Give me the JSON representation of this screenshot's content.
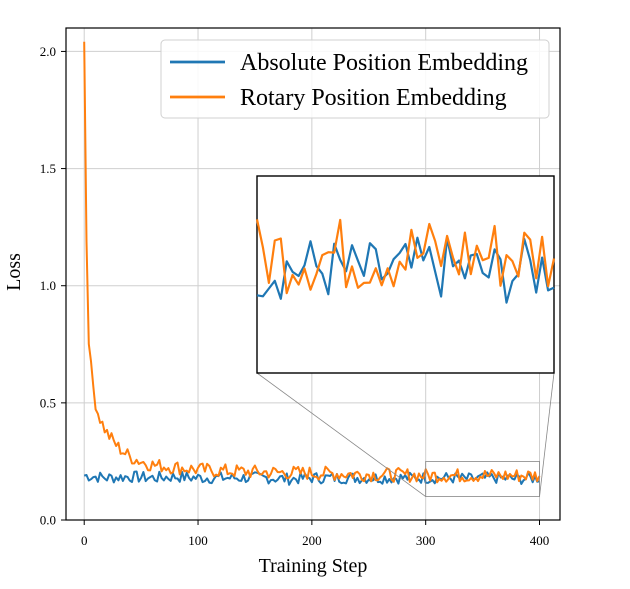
{
  "chart_data": {
    "type": "line",
    "title": "",
    "xlabel": "Training Step",
    "ylabel": "Loss",
    "xlim": [
      -16,
      418
    ],
    "ylim": [
      0.0,
      2.1
    ],
    "xticks": [
      0,
      100,
      200,
      300,
      400
    ],
    "xtick_labels": [
      "0",
      "100",
      "200",
      "300",
      "400"
    ],
    "yticks": [
      0.0,
      0.5,
      1.0,
      1.5,
      2.0
    ],
    "ytick_labels": [
      "0.0",
      "0.5",
      "1.0",
      "1.5",
      "2.0"
    ],
    "grid": true,
    "legend_position": "top-right",
    "series": [
      {
        "name": "Absolute Position Embedding",
        "color": "#1f77b4",
        "x": [
          0,
          20,
          40,
          60,
          80,
          100,
          120,
          140,
          160,
          180,
          200,
          220,
          240,
          260,
          280,
          300,
          320,
          340,
          360,
          380,
          400
        ],
        "values": [
          0.19,
          0.18,
          0.185,
          0.18,
          0.185,
          0.18,
          0.18,
          0.18,
          0.18,
          0.175,
          0.18,
          0.18,
          0.18,
          0.18,
          0.18,
          0.18,
          0.18,
          0.175,
          0.18,
          0.175,
          0.18
        ],
        "noise_band": 0.025
      },
      {
        "name": "Rotary Position Embedding",
        "color": "#ff7f0e",
        "x": [
          0,
          2,
          4,
          6,
          8,
          10,
          12,
          15,
          20,
          25,
          30,
          40,
          50,
          60,
          80,
          100,
          120,
          150,
          200,
          250,
          300,
          350,
          400
        ],
        "values": [
          2.04,
          1.2,
          0.78,
          0.65,
          0.57,
          0.5,
          0.46,
          0.42,
          0.37,
          0.34,
          0.31,
          0.27,
          0.25,
          0.235,
          0.225,
          0.215,
          0.21,
          0.205,
          0.2,
          0.195,
          0.19,
          0.19,
          0.19
        ],
        "noise_band": 0.03
      }
    ],
    "inset": {
      "xlim": [
        300,
        400
      ],
      "ylim": [
        0.1,
        0.25
      ],
      "description": "zoomed view of training steps 300-400"
    }
  }
}
